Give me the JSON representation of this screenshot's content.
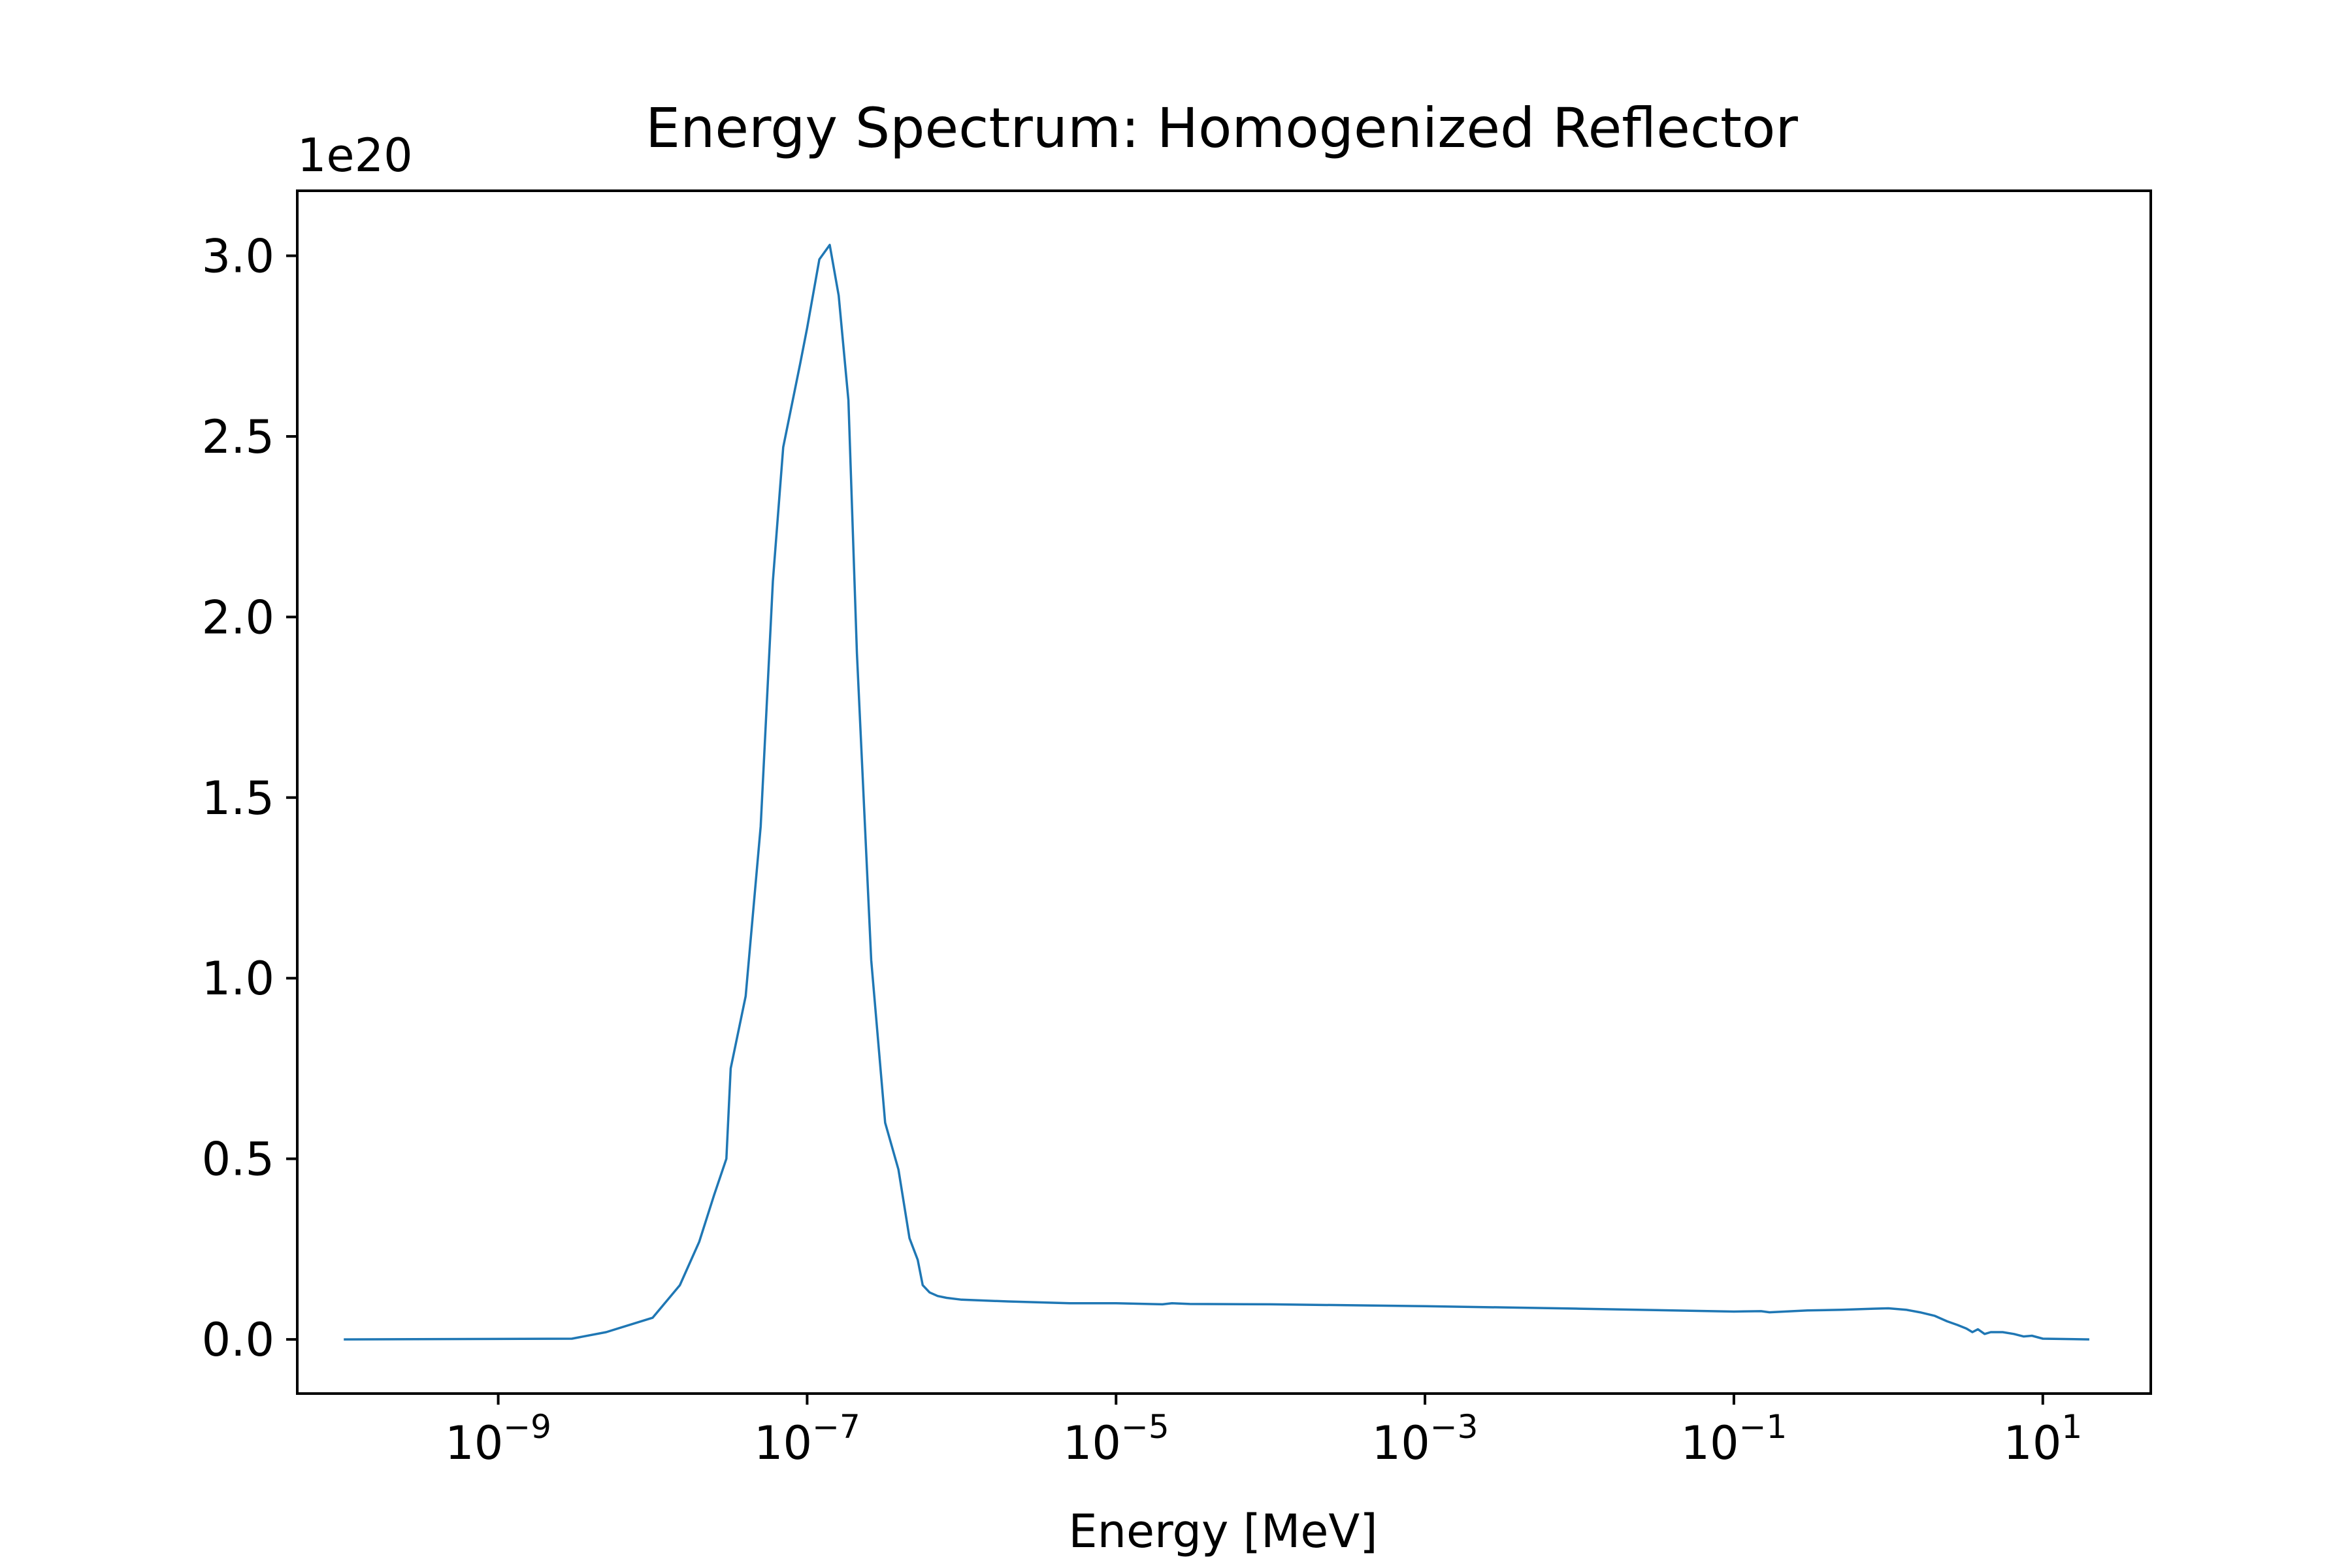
{
  "chart_data": {
    "type": "line",
    "title": "Energy Spectrum: Homogenized Reflector",
    "xlabel": "Energy [MeV]",
    "ylabel": "",
    "x_scale": "log",
    "xlim": [
      5e-11,
      50
    ],
    "ylim": [
      -1.5e+19,
      3.18e+20
    ],
    "y_offset_label": "1e20",
    "x_ticks": [
      {
        "value": 1e-09,
        "base": "10",
        "exp": "−9"
      },
      {
        "value": 1e-07,
        "base": "10",
        "exp": "−7"
      },
      {
        "value": 1e-05,
        "base": "10",
        "exp": "−5"
      },
      {
        "value": 0.001,
        "base": "10",
        "exp": "−3"
      },
      {
        "value": 0.1,
        "base": "10",
        "exp": "−1"
      },
      {
        "value": 10,
        "base": "10",
        "exp": "1"
      }
    ],
    "y_ticks": [
      {
        "value": 0.0,
        "label": "0.0"
      },
      {
        "value": 5e+19,
        "label": "0.5"
      },
      {
        "value": 1e+20,
        "label": "1.0"
      },
      {
        "value": 1.5e+20,
        "label": "1.5"
      },
      {
        "value": 2e+20,
        "label": "2.0"
      },
      {
        "value": 2.5e+20,
        "label": "2.5"
      },
      {
        "value": 3e+20,
        "label": "3.0"
      }
    ],
    "grid": false,
    "series": [
      {
        "color": "#1f77b4",
        "x": [
          1e-10,
          3e-09,
          5e-09,
          1e-08,
          1.5e-08,
          2e-08,
          2.5e-08,
          3e-08,
          3.2e-08,
          4e-08,
          5e-08,
          6e-08,
          7e-08,
          9e-08,
          1e-07,
          1.2e-07,
          1.4e-07,
          1.6e-07,
          1.85e-07,
          2.1e-07,
          2.6e-07,
          3.2e-07,
          3.9e-07,
          4.6e-07,
          5.2e-07,
          5.6e-07,
          6.2e-07,
          7e-07,
          8e-07,
          1e-06,
          2e-06,
          5e-06,
          1e-05,
          2e-05,
          2.3e-05,
          3e-05,
          0.0001,
          0.001,
          0.01,
          0.1,
          0.15,
          0.17,
          0.3,
          0.5,
          0.8,
          1.0,
          1.3,
          1.6,
          2.0,
          2.4,
          2.8,
          3.2,
          3.5,
          3.8,
          4.2,
          4.6,
          5.5,
          6.5,
          7.5,
          8.5,
          10,
          20
        ],
        "y": [
          0.0,
          2e+17,
          2e+18,
          6e+18,
          1.5e+19,
          2.7e+19,
          4e+19,
          5e+19,
          7.5e+19,
          9.5e+19,
          1.42e+20,
          2.1e+20,
          2.47e+20,
          2.7e+20,
          2.8e+20,
          2.99e+20,
          3.03e+20,
          2.89e+20,
          2.6e+20,
          1.9e+20,
          1.05e+20,
          6e+19,
          4.7e+19,
          2.8e+19,
          2.2e+19,
          1.5e+19,
          1.3e+19,
          1.2e+19,
          1.15e+19,
          1.1e+19,
          1.05e+19,
          1e+19,
          1e+19,
          9.7e+18,
          1e+19,
          9.8e+18,
          9.7e+18,
          9.2e+18,
          8.5e+18,
          7.7e+18,
          7.8e+18,
          7.5e+18,
          8e+18,
          8.2e+18,
          8.5e+18,
          8.6e+18,
          8.2e+18,
          7.5e+18,
          6.5e+18,
          5e+18,
          4e+18,
          3e+18,
          2e+18,
          2.8e+18,
          1.5e+18,
          2e+18,
          2e+18,
          1.5e+18,
          8e+17,
          1e+18,
          2e+17,
          0.0
        ]
      }
    ]
  }
}
